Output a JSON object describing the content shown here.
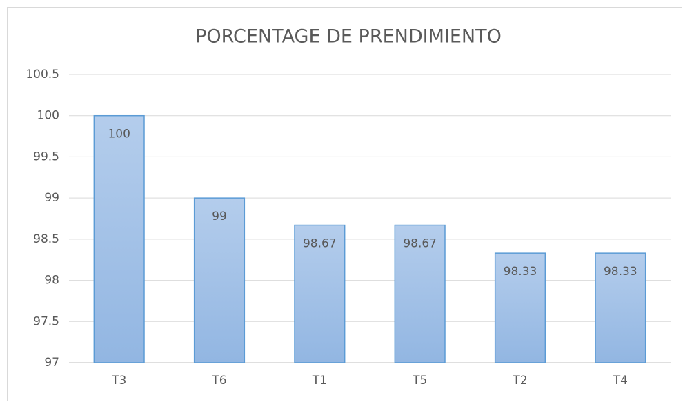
{
  "chart_data": {
    "type": "bar",
    "title": "PORCENTAGE DE PRENDIMIENTO",
    "categories": [
      "T3",
      "T6",
      "T1",
      "T5",
      "T2",
      "T4"
    ],
    "values": [
      100,
      99,
      98.67,
      98.67,
      98.33,
      98.33
    ],
    "color": "#5b9bd5",
    "ylim": [
      97,
      100.5
    ],
    "yticks": [
      97,
      97.5,
      98,
      98.5,
      99,
      99.5,
      100,
      100.5
    ],
    "grid": true
  }
}
